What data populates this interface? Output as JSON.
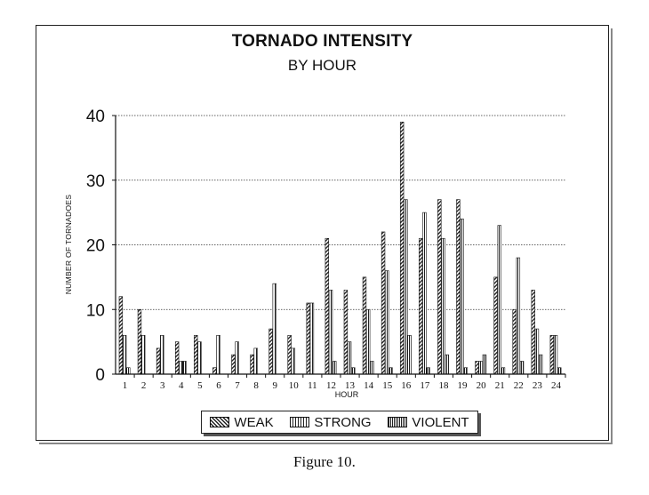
{
  "chart_data": {
    "type": "bar",
    "title": "TORNADO INTENSITY",
    "subtitle": "BY HOUR",
    "xlabel": "HOUR",
    "ylabel": "NUMBER OF TORNADOES",
    "ylim": [
      0,
      40
    ],
    "yticks": [
      "0",
      "10",
      "20",
      "30",
      "40"
    ],
    "grid": true,
    "legend_position": "bottom",
    "categories": [
      "1",
      "2",
      "3",
      "4",
      "5",
      "6",
      "7",
      "8",
      "9",
      "10",
      "11",
      "12",
      "13",
      "14",
      "15",
      "16",
      "17",
      "18",
      "19",
      "20",
      "21",
      "22",
      "23",
      "24"
    ],
    "series": [
      {
        "name": "WEAK",
        "values": [
          12,
          10,
          4,
          5,
          6,
          1,
          3,
          3,
          7,
          6,
          11,
          21,
          13,
          15,
          22,
          39,
          21,
          27,
          27,
          2,
          15,
          10,
          13,
          6
        ]
      },
      {
        "name": "STRONG",
        "values": [
          6,
          6,
          6,
          2,
          5,
          6,
          5,
          4,
          14,
          4,
          11,
          13,
          5,
          10,
          16,
          27,
          25,
          21,
          24,
          2,
          23,
          18,
          7,
          6
        ]
      },
      {
        "name": "VIOLENT",
        "values": [
          1,
          0,
          0,
          2,
          0,
          0,
          0,
          0,
          0,
          0,
          0,
          2,
          1,
          2,
          1,
          6,
          1,
          3,
          1,
          3,
          1,
          2,
          3,
          1
        ]
      }
    ]
  },
  "caption": "Figure 10."
}
